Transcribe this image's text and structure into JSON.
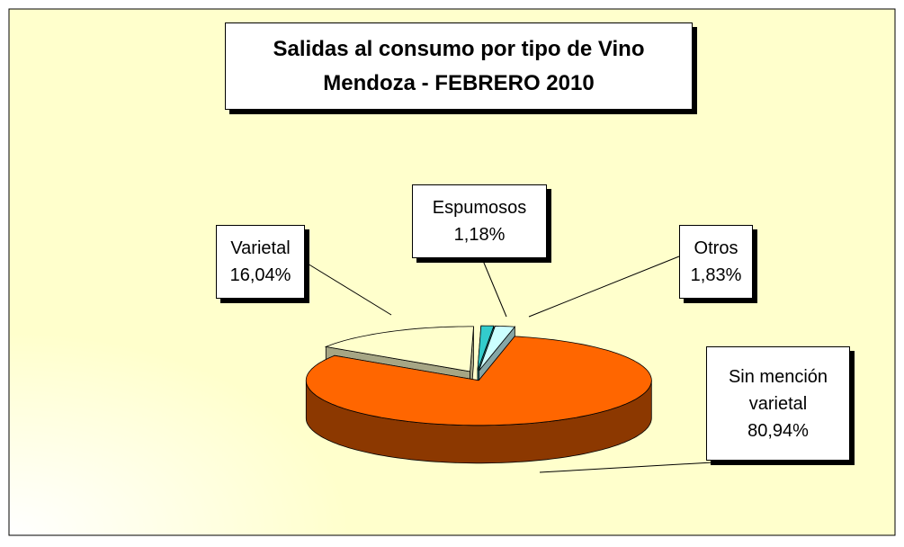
{
  "chart_data": {
    "type": "pie3d",
    "title": "Salidas al consumo por tipo de Vino",
    "subtitle": "Mendoza - FEBRERO 2010",
    "categories": [
      "Sin mención varietal",
      "Varietal",
      "Espumosos",
      "Otros"
    ],
    "values": [
      80.94,
      16.04,
      1.18,
      1.83
    ],
    "value_labels": [
      "80,94%",
      "16,04%",
      "1,18%",
      "1,83%"
    ],
    "colors": [
      "#ff6600",
      "#ffffcc",
      "#33cccc",
      "#ccffff"
    ]
  }
}
